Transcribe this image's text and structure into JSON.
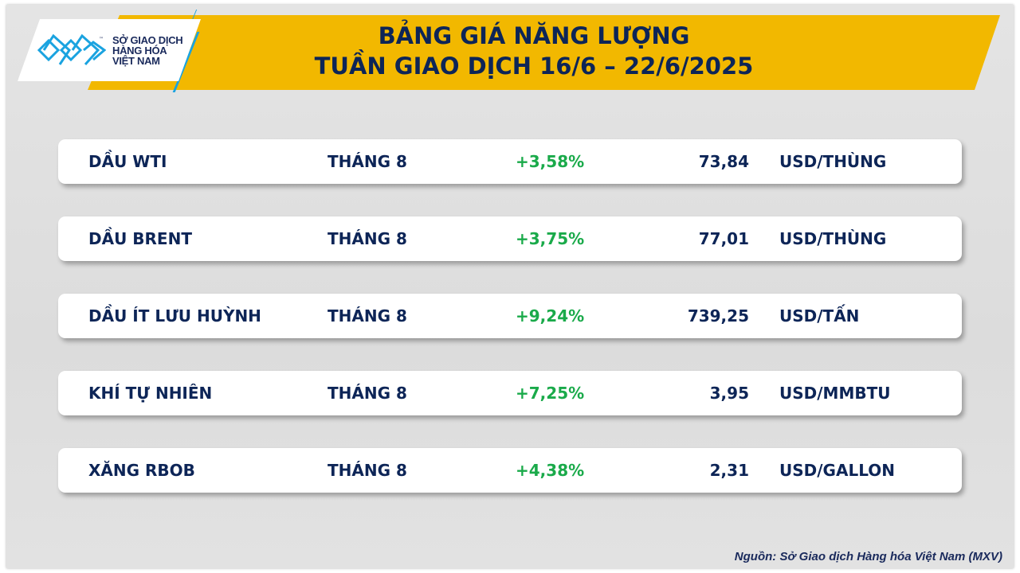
{
  "header": {
    "title_line1": "BẢNG GIÁ NĂNG LƯỢNG",
    "title_line2": "TUẦN GIAO DỊCH 16/6 – 22/6/2025",
    "logo": {
      "line1": "SỞ GIAO DỊCH",
      "line2": "HÀNG HÓA",
      "line3": "VIỆT NAM",
      "tm": "™"
    }
  },
  "colors": {
    "banner": "#f2b800",
    "navy": "#0d2557",
    "positive": "#1aaa4a",
    "logo_blue": "#1aa3e0"
  },
  "rows": [
    {
      "name": "DẦU WTI",
      "month": "THÁNG 8",
      "change": "+3,58%",
      "price": "73,84",
      "unit": "USD/THÙNG"
    },
    {
      "name": "DẦU BRENT",
      "month": "THÁNG 8",
      "change": "+3,75%",
      "price": "77,01",
      "unit": "USD/THÙNG"
    },
    {
      "name": "DẦU ÍT LƯU HUỲNH",
      "month": "THÁNG 8",
      "change": "+9,24%",
      "price": "739,25",
      "unit": "USD/TẤN"
    },
    {
      "name": "KHÍ TỰ NHIÊN",
      "month": "THÁNG 8",
      "change": "+7,25%",
      "price": "3,95",
      "unit": "USD/MMBTU"
    },
    {
      "name": "XĂNG RBOB",
      "month": "THÁNG 8",
      "change": "+4,38%",
      "price": "2,31",
      "unit": "USD/GALLON"
    }
  ],
  "footer": {
    "source": "Nguồn: Sở Giao dịch Hàng hóa Việt Nam (MXV)"
  }
}
